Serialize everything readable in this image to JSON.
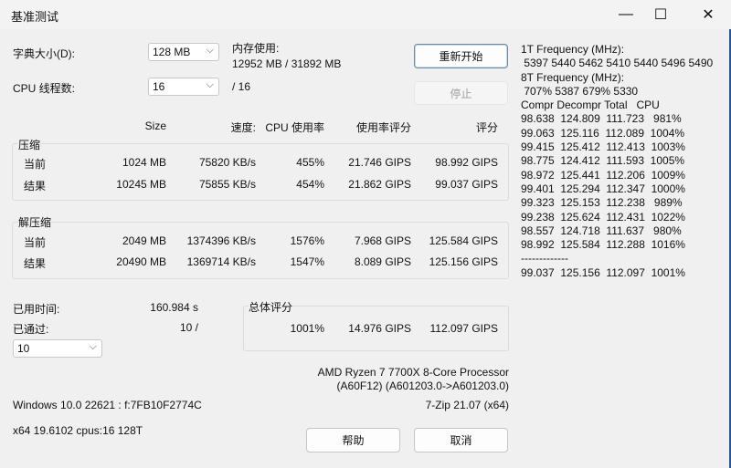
{
  "window": {
    "title": "基准测试",
    "minimize": "—",
    "maximize": "☐",
    "close": "✕"
  },
  "dict": {
    "label": "字典大小(D):",
    "value": "128 MB"
  },
  "threads": {
    "label": "CPU 线程数:",
    "value": "16",
    "max": "/ 16"
  },
  "memory": {
    "label": "内存使用:",
    "value": "12952 MB / 31892 MB"
  },
  "buttons": {
    "restart": "重新开始",
    "stop": "停止",
    "help": "帮助",
    "cancel": "取消"
  },
  "headers": [
    "Size",
    "速度:",
    "CPU 使用率",
    "使用率评分",
    "评分"
  ],
  "compress": {
    "title": "压缩",
    "rows": [
      {
        "label": "当前",
        "size": "1024 MB",
        "speed": "75820 KB/s",
        "cpu": "455%",
        "rating": "21.746 GIPS",
        "score": "98.992 GIPS"
      },
      {
        "label": "结果",
        "size": "10245 MB",
        "speed": "75855 KB/s",
        "cpu": "454%",
        "rating": "21.862 GIPS",
        "score": "99.037 GIPS"
      }
    ]
  },
  "decompress": {
    "title": "解压缩",
    "rows": [
      {
        "label": "当前",
        "size": "2049 MB",
        "speed": "1374396 KB/s",
        "cpu": "1576%",
        "rating": "7.968 GIPS",
        "score": "125.584 GIPS"
      },
      {
        "label": "结果",
        "size": "20490 MB",
        "speed": "1369714 KB/s",
        "cpu": "1547%",
        "rating": "8.089 GIPS",
        "score": "125.156 GIPS"
      }
    ]
  },
  "elapsed": {
    "label": "已用时间:",
    "value": "160.984 s"
  },
  "passes": {
    "label": "已通过:",
    "value": "10 /",
    "select": "10"
  },
  "total": {
    "title": "总体评分",
    "cpu": "1001%",
    "rating": "14.976 GIPS",
    "score": "112.097 GIPS"
  },
  "cpu_info": {
    "line1": "AMD Ryzen 7 7700X 8-Core Processor",
    "line2": "(A60F12) (A601203.0->A601203.0)"
  },
  "os": "Windows 10.0 22621 :  f:7FB10F2774C",
  "version": "7-Zip 21.07 (x64)",
  "arch": "x64 19.6102 cpus:16 128T",
  "log": "1T Frequency (MHz):\n 5397 5440 5462 5410 5440 5496 5490\n8T Frequency (MHz):\n 707% 5387 679% 5330\nCompr Decompr Total   CPU\n98.638  124.809  111.723   981%\n99.063  125.116  112.089  1004%\n99.415  125.412  112.413  1003%\n98.775  124.412  111.593  1005%\n98.972  125.441  112.206  1009%\n99.401  125.294  112.347  1000%\n99.323  125.153  112.238   989%\n99.238  125.624  112.431  1022%\n98.557  124.718  111.637   980%\n98.992  125.584  112.288  1016%\n-------------\n99.037  125.156  112.097  1001%"
}
